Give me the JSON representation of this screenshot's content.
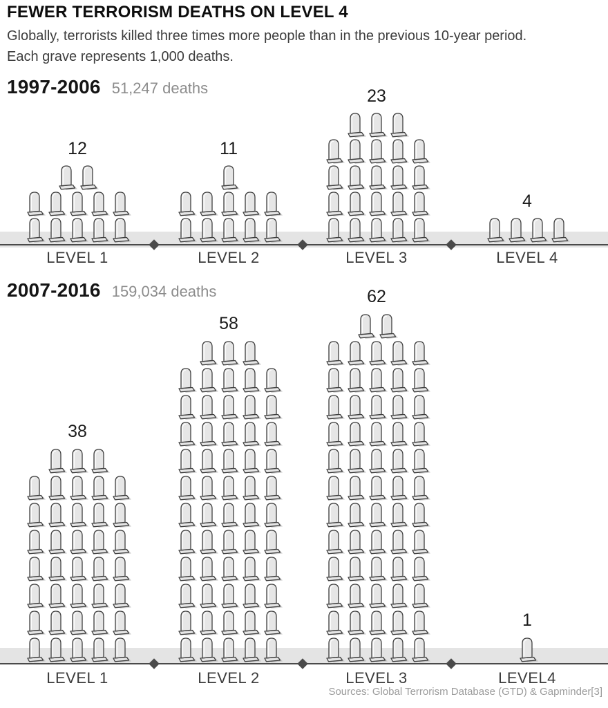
{
  "title": "FEWER TERRORISM DEATHS ON LEVEL 4",
  "subtitle_line1": "Globally, terrorists killed three times more people than in the previous 10-year period.",
  "subtitle_line2": "Each grave represents 1,000 deaths.",
  "footer": "Sources: Global Terrorism Database (GTD) & Gapminder[3]",
  "chart_data": {
    "type": "pictogram-bar",
    "title": "FEWER TERRORISM DEATHS ON LEVEL 4",
    "unit_note": "Each grave represents 1,000 deaths",
    "icon": "tombstone",
    "icons_per_row": 5,
    "periods": [
      {
        "label": "1997-2006",
        "deaths_label": "51,247 deaths",
        "total_deaths": 51247,
        "categories": [
          "LEVEL 1",
          "LEVEL 2",
          "LEVEL 3",
          "LEVEL 4"
        ],
        "values": [
          12,
          11,
          23,
          4
        ]
      },
      {
        "label": "2007-2016",
        "deaths_label": "159,034 deaths",
        "total_deaths": 159034,
        "categories": [
          "LEVEL 1",
          "LEVEL 2",
          "LEVEL 3",
          "LEVEL4"
        ],
        "values": [
          38,
          58,
          62,
          1
        ]
      }
    ],
    "colors": {
      "grave_fill": "#e6e6e6",
      "grave_outline": "#3f3f3f",
      "grave_shadow": "#b0b0b0",
      "axis_band": "#e4e4e4",
      "axis_line": "#4a4a4a",
      "count_text": "#1b1b1b",
      "muted_text": "#8c8c8c"
    }
  }
}
